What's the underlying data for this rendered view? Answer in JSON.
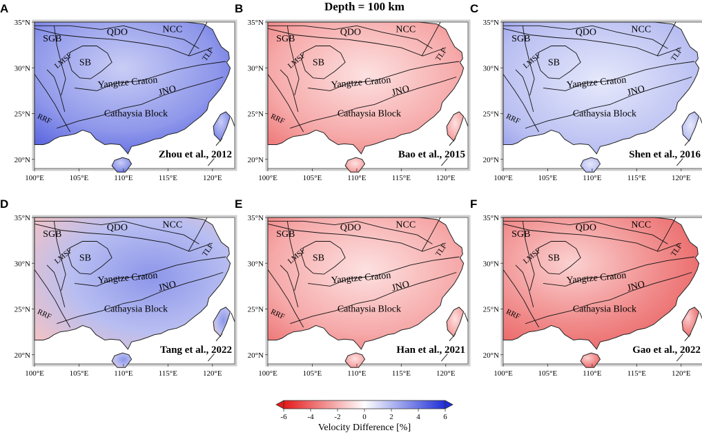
{
  "title": "Depth = 100 km",
  "colorbar": {
    "label": "Velocity Difference [%]",
    "ticks": [
      "-6",
      "-4",
      "-2",
      "0",
      "2",
      "4",
      "6"
    ],
    "min_color": "#e31a1c",
    "mid_color": "#ffffff",
    "max_color": "#1f2fd6"
  },
  "lon_ticks": [
    "100°E",
    "105°E",
    "110°E",
    "115°E",
    "120°E"
  ],
  "lat_ticks": [
    "35°N",
    "30°N",
    "25°N",
    "20°N"
  ],
  "regions": {
    "sgb": "SGB",
    "qdo": "QDO",
    "ncc": "NCC",
    "tlf": "TLF",
    "lmsf": "LMSF",
    "sb": "SB",
    "yangtze": "Yangtze Craton",
    "jno": "JNO",
    "rrf": "RRF",
    "cathaysia": "Cathaysia Block"
  },
  "panels": [
    {
      "letter": "A",
      "citation": "Zhou et al., 2012",
      "tone": "blue"
    },
    {
      "letter": "B",
      "citation": "Bao et al., 2015",
      "tone": "red"
    },
    {
      "letter": "C",
      "citation": "Shen et al., 2016",
      "tone": "lightblue"
    },
    {
      "letter": "D",
      "citation": "Tang et al., 2022",
      "tone": "mixed"
    },
    {
      "letter": "E",
      "citation": "Han et al., 2021",
      "tone": "red"
    },
    {
      "letter": "F",
      "citation": "Gao et al., 2022",
      "tone": "deepred"
    }
  ]
}
